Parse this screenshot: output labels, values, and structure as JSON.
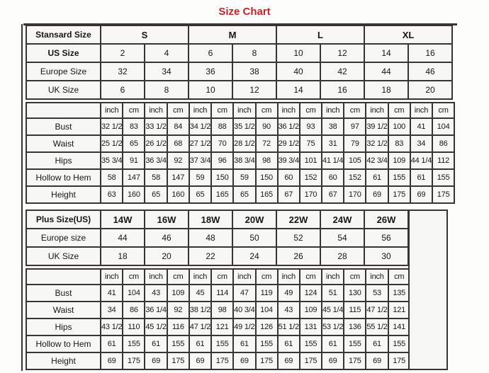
{
  "page": {
    "title": "Size Chart"
  },
  "colors": {
    "title_red": "#c3242a",
    "border_dark": "#39342e",
    "cell_bg": "#f7f7f5",
    "page_bg": "#fcfcfa"
  },
  "tables": [
    {
      "id": "standard",
      "size_row": {
        "label": "Stansard Size",
        "sizes": [
          "S",
          "M",
          "L",
          "XL"
        ]
      },
      "info_rows": [
        {
          "label": "US Size",
          "bold": true,
          "values": [
            "2",
            "4",
            "6",
            "8",
            "10",
            "12",
            "14",
            "16"
          ]
        },
        {
          "label": "Europe Size",
          "bold": false,
          "values": [
            "32",
            "34",
            "36",
            "38",
            "40",
            "42",
            "44",
            "46"
          ]
        },
        {
          "label": "UK Size",
          "bold": false,
          "values": [
            "6",
            "8",
            "10",
            "12",
            "14",
            "16",
            "18",
            "20"
          ]
        }
      ],
      "unit_labels": [
        "inch",
        "cm"
      ],
      "unit_pairs": 8,
      "measure_rows": [
        {
          "label": "Bust",
          "values": [
            "32 1/2",
            "83",
            "33 1/2",
            "84",
            "34 1/2",
            "88",
            "35 1/2",
            "90",
            "36 1/2",
            "93",
            "38",
            "97",
            "39 1/2",
            "100",
            "41",
            "104"
          ]
        },
        {
          "label": "Waist",
          "values": [
            "25 1/2",
            "65",
            "26 1/2",
            "68",
            "27 1/2",
            "70",
            "28 1/2",
            "72",
            "29 1/2",
            "75",
            "31",
            "79",
            "32 1/2",
            "83",
            "34",
            "86"
          ]
        },
        {
          "label": "Hips",
          "values": [
            "35 3/4",
            "91",
            "36 3/4",
            "92",
            "37 3/4",
            "96",
            "38 3/4",
            "98",
            "39 3/4",
            "101",
            "41 1/4",
            "105",
            "42 3/4",
            "109",
            "44 1/4",
            "112"
          ]
        },
        {
          "label": "Hollow to Hem",
          "values": [
            "58",
            "147",
            "58",
            "147",
            "59",
            "150",
            "59",
            "150",
            "60",
            "152",
            "60",
            "152",
            "61",
            "155",
            "61",
            "155"
          ]
        },
        {
          "label": "Height",
          "values": [
            "63",
            "160",
            "65",
            "160",
            "65",
            "165",
            "65",
            "165",
            "67",
            "170",
            "67",
            "170",
            "69",
            "175",
            "69",
            "175"
          ]
        }
      ]
    },
    {
      "id": "plus",
      "size_row": {
        "label": "Plus Size(US)",
        "sizes": [
          "14W",
          "16W",
          "18W",
          "20W",
          "22W",
          "24W",
          "26W"
        ]
      },
      "info_rows": [
        {
          "label": "Europe size",
          "bold": false,
          "values": [
            "44",
            "46",
            "48",
            "50",
            "52",
            "54",
            "56"
          ]
        },
        {
          "label": "UK Size",
          "bold": false,
          "values": [
            "18",
            "20",
            "22",
            "24",
            "26",
            "28",
            "30"
          ]
        }
      ],
      "unit_labels": [
        "inch",
        "cm"
      ],
      "unit_pairs": 7,
      "measure_rows": [
        {
          "label": "Bust",
          "values": [
            "41",
            "104",
            "43",
            "109",
            "45",
            "114",
            "47",
            "119",
            "49",
            "124",
            "51",
            "130",
            "53",
            "135"
          ]
        },
        {
          "label": "Waist",
          "values": [
            "34",
            "86",
            "36 1/4",
            "92",
            "38 1/2",
            "98",
            "40 3/4",
            "104",
            "43",
            "109",
            "45 1/4",
            "115",
            "47 1/2",
            "121"
          ]
        },
        {
          "label": "Hips",
          "values": [
            "43 1/2",
            "110",
            "45 1/2",
            "116",
            "47 1/2",
            "121",
            "49 1/2",
            "126",
            "51 1/2",
            "131",
            "53 1/2",
            "136",
            "55 1/2",
            "141"
          ]
        },
        {
          "label": "Hollow to Hem",
          "values": [
            "61",
            "155",
            "61",
            "155",
            "61",
            "155",
            "61",
            "155",
            "61",
            "155",
            "61",
            "155",
            "61",
            "155"
          ]
        },
        {
          "label": "Height",
          "values": [
            "69",
            "175",
            "69",
            "175",
            "69",
            "175",
            "69",
            "175",
            "69",
            "175",
            "69",
            "175",
            "69",
            "175"
          ]
        }
      ],
      "has_trailing_empty": true
    }
  ]
}
